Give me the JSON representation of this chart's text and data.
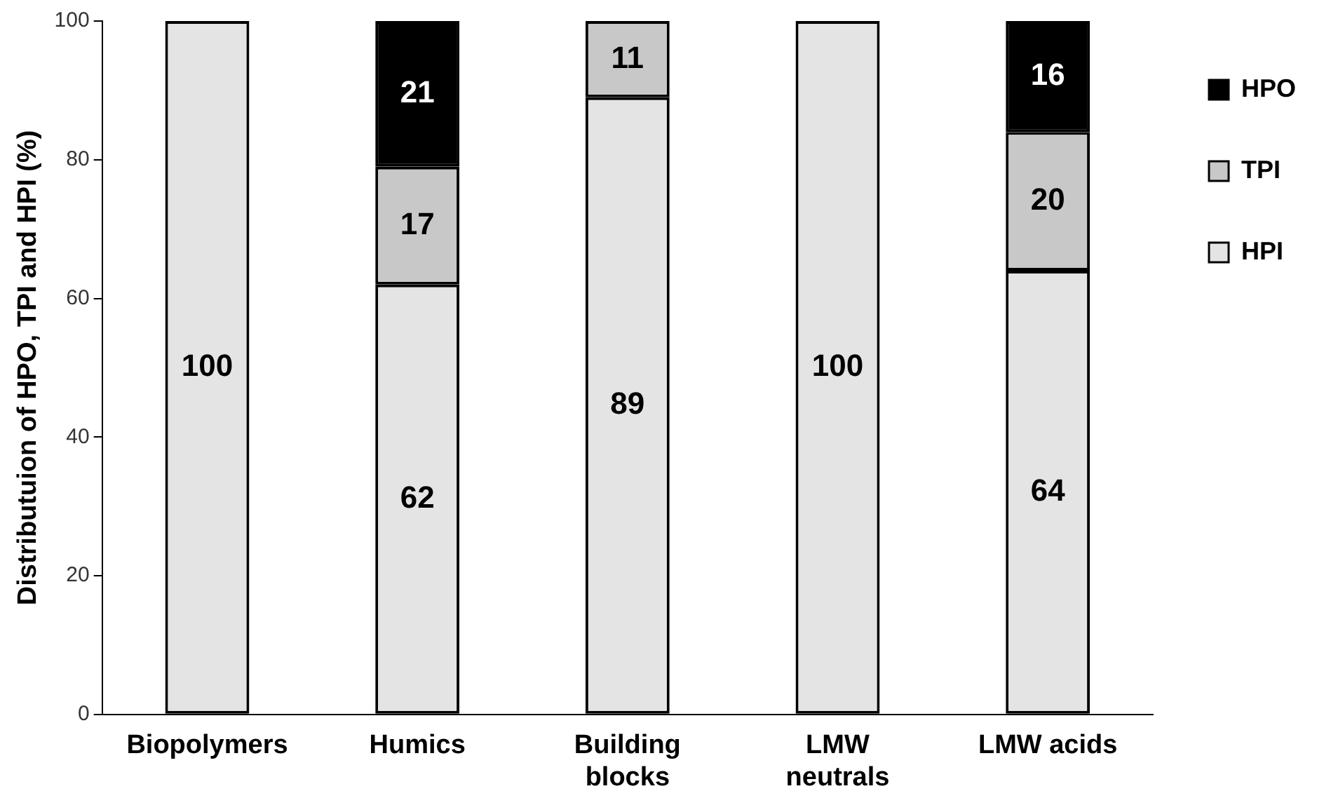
{
  "chart_data": {
    "type": "bar",
    "stacked": true,
    "ylabel": "Distributuion of HPO, TPI and HPI (%)",
    "categories": [
      "Biopolymers",
      "Humics",
      "Building blocks",
      "LMW neutrals",
      "LMW acids"
    ],
    "series": [
      {
        "name": "HPI",
        "color": "#e4e4e4",
        "values": [
          100,
          62,
          89,
          100,
          64
        ]
      },
      {
        "name": "TPI",
        "color": "#c8c8c8",
        "values": [
          null,
          17,
          11,
          null,
          20
        ]
      },
      {
        "name": "HPO",
        "color": "#000000",
        "values": [
          null,
          21,
          null,
          null,
          16
        ]
      }
    ],
    "ylim": [
      0,
      100
    ],
    "yticks": [
      0,
      20,
      40,
      60,
      80,
      100
    ],
    "grid": false,
    "legend": "right",
    "data_labels": true
  }
}
